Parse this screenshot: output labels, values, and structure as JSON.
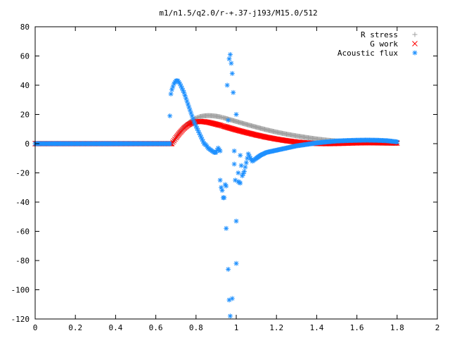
{
  "chart_data": {
    "type": "scatter",
    "title": "m1/n1.5/q2.0/r-+.37-j193/M15.0/512",
    "xlabel": "",
    "ylabel": "",
    "xlim": [
      0,
      2
    ],
    "ylim": [
      -120,
      80
    ],
    "x_ticks": [
      "0",
      "0.2",
      "0.4",
      "0.6",
      "0.8",
      "1",
      "1.2",
      "1.4",
      "1.6",
      "1.8",
      "2"
    ],
    "y_ticks": [
      "80",
      "60",
      "40",
      "20",
      "0",
      "-20",
      "-40",
      "-60",
      "-80",
      "-100",
      "-120"
    ],
    "grid": false,
    "legend_position": "top-right",
    "series": [
      {
        "name": "R stress",
        "marker": "+",
        "color": "#a0a0a0",
        "points": [
          [
            0,
            0
          ],
          [
            0.2,
            0
          ],
          [
            0.4,
            0
          ],
          [
            0.6,
            0
          ],
          [
            0.68,
            0
          ],
          [
            0.7,
            4
          ],
          [
            0.72,
            8
          ],
          [
            0.74,
            11
          ],
          [
            0.76,
            14
          ],
          [
            0.78,
            16
          ],
          [
            0.8,
            17.5
          ],
          [
            0.82,
            18.5
          ],
          [
            0.84,
            19
          ],
          [
            0.86,
            19.2
          ],
          [
            0.88,
            19.1
          ],
          [
            0.9,
            18.8
          ],
          [
            0.92,
            18.3
          ],
          [
            0.94,
            17.6
          ],
          [
            0.96,
            16.8
          ],
          [
            0.98,
            16
          ],
          [
            1.0,
            15.2
          ],
          [
            1.05,
            13.2
          ],
          [
            1.1,
            11.3
          ],
          [
            1.15,
            9.5
          ],
          [
            1.2,
            7.9
          ],
          [
            1.25,
            6.5
          ],
          [
            1.3,
            5.3
          ],
          [
            1.35,
            4.2
          ],
          [
            1.4,
            3.2
          ],
          [
            1.45,
            2.4
          ],
          [
            1.5,
            1.8
          ],
          [
            1.55,
            1.3
          ],
          [
            1.6,
            0.9
          ],
          [
            1.65,
            0.6
          ],
          [
            1.7,
            0.4
          ],
          [
            1.75,
            0.3
          ],
          [
            1.8,
            0.2
          ]
        ]
      },
      {
        "name": "G work",
        "marker": "x",
        "color": "#ff0000",
        "points": [
          [
            0,
            0
          ],
          [
            0.2,
            0
          ],
          [
            0.4,
            0
          ],
          [
            0.6,
            0
          ],
          [
            0.68,
            0
          ],
          [
            0.7,
            4
          ],
          [
            0.72,
            7.5
          ],
          [
            0.74,
            10.5
          ],
          [
            0.76,
            12.8
          ],
          [
            0.78,
            14.2
          ],
          [
            0.8,
            15
          ],
          [
            0.82,
            15.2
          ],
          [
            0.84,
            15
          ],
          [
            0.86,
            14.6
          ],
          [
            0.88,
            14
          ],
          [
            0.9,
            13.3
          ],
          [
            0.92,
            12.6
          ],
          [
            0.94,
            11.8
          ],
          [
            0.96,
            11
          ],
          [
            0.98,
            10.2
          ],
          [
            1.0,
            9.4
          ],
          [
            1.05,
            7.6
          ],
          [
            1.1,
            5.9
          ],
          [
            1.15,
            4.4
          ],
          [
            1.2,
            3.1
          ],
          [
            1.25,
            2
          ],
          [
            1.3,
            1.1
          ],
          [
            1.35,
            0.5
          ],
          [
            1.4,
            0.1
          ],
          [
            1.45,
            0
          ],
          [
            1.5,
            0.1
          ],
          [
            1.55,
            0.3
          ],
          [
            1.6,
            0.5
          ],
          [
            1.65,
            0.6
          ],
          [
            1.7,
            0.6
          ],
          [
            1.75,
            0.5
          ],
          [
            1.8,
            0.4
          ]
        ]
      },
      {
        "name": "Acoustic flux",
        "marker": "*",
        "color": "#1e90ff",
        "points": [
          [
            0,
            0
          ],
          [
            0.2,
            0
          ],
          [
            0.4,
            0
          ],
          [
            0.6,
            0
          ],
          [
            0.67,
            0
          ],
          [
            0.67,
            19
          ],
          [
            0.675,
            34
          ],
          [
            0.68,
            37
          ],
          [
            0.69,
            41
          ],
          [
            0.7,
            43
          ],
          [
            0.71,
            43
          ],
          [
            0.72,
            41
          ],
          [
            0.73,
            38
          ],
          [
            0.74,
            35
          ],
          [
            0.75,
            31
          ],
          [
            0.76,
            27
          ],
          [
            0.77,
            23
          ],
          [
            0.78,
            19
          ],
          [
            0.79,
            15
          ],
          [
            0.8,
            12
          ],
          [
            0.81,
            9
          ],
          [
            0.82,
            6
          ],
          [
            0.83,
            3
          ],
          [
            0.84,
            0
          ],
          [
            0.85,
            -1
          ],
          [
            0.86,
            -3
          ],
          [
            0.87,
            -4
          ],
          [
            0.88,
            -5
          ],
          [
            0.89,
            -6
          ],
          [
            0.9,
            -6
          ],
          [
            0.91,
            -3
          ],
          [
            0.92,
            -5
          ],
          [
            0.92,
            -25
          ],
          [
            0.925,
            -30
          ],
          [
            0.93,
            -32
          ],
          [
            0.935,
            -37
          ],
          [
            0.94,
            -37
          ],
          [
            0.945,
            -28
          ],
          [
            0.95,
            -29
          ],
          [
            0.95,
            -58
          ],
          [
            0.955,
            40
          ],
          [
            0.96,
            -86
          ],
          [
            0.96,
            16
          ],
          [
            0.965,
            -107
          ],
          [
            0.965,
            58
          ],
          [
            0.97,
            -118
          ],
          [
            0.97,
            61
          ],
          [
            0.975,
            55
          ],
          [
            0.98,
            48
          ],
          [
            0.98,
            -106
          ],
          [
            0.985,
            35
          ],
          [
            0.99,
            -5
          ],
          [
            0.99,
            -14
          ],
          [
            0.995,
            -25
          ],
          [
            1.0,
            -82
          ],
          [
            1.0,
            -53
          ],
          [
            1.0,
            20
          ],
          [
            1.01,
            -20
          ],
          [
            1.01,
            -26
          ],
          [
            1.02,
            -27
          ],
          [
            1.02,
            -8
          ],
          [
            1.03,
            -22
          ],
          [
            1.04,
            -19
          ],
          [
            1.05,
            -13
          ],
          [
            1.06,
            -7
          ],
          [
            1.07,
            -10
          ],
          [
            1.08,
            -12
          ],
          [
            1.09,
            -11
          ],
          [
            1.1,
            -10
          ],
          [
            1.12,
            -8
          ],
          [
            1.15,
            -6
          ],
          [
            1.2,
            -4.5
          ],
          [
            1.25,
            -3
          ],
          [
            1.3,
            -1.5
          ],
          [
            1.35,
            -0.5
          ],
          [
            1.4,
            0.5
          ],
          [
            1.45,
            1.2
          ],
          [
            1.5,
            1.8
          ],
          [
            1.55,
            2.1
          ],
          [
            1.6,
            2.3
          ],
          [
            1.65,
            2.4
          ],
          [
            1.7,
            2.3
          ],
          [
            1.75,
            2
          ],
          [
            1.8,
            1.2
          ]
        ]
      }
    ]
  }
}
